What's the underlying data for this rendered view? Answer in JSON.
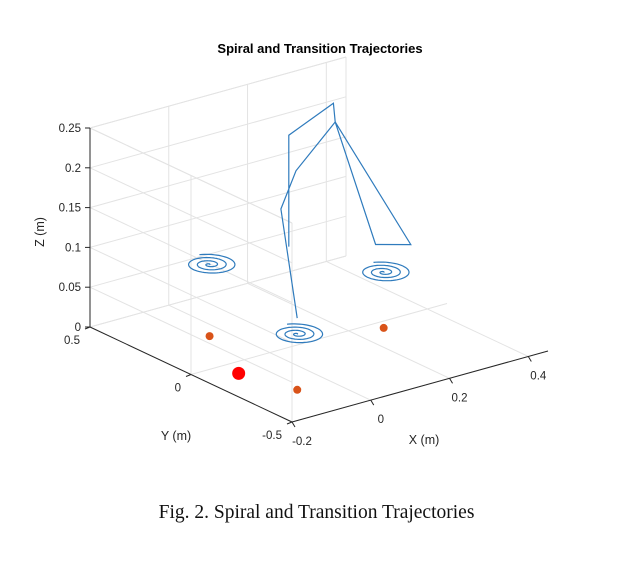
{
  "chart_data": {
    "type": "line3d",
    "title": "Spiral and Transition Trajectories",
    "xlabel": "X (m)",
    "ylabel": "Y (m)",
    "zlabel": "Z (m)",
    "xlim": [
      -0.2,
      0.45
    ],
    "ylim": [
      -0.5,
      0.5
    ],
    "zlim": [
      0,
      0.25
    ],
    "xticks": [
      "-0.2",
      "0",
      "0.2",
      "0.4"
    ],
    "yticks": [
      "-0.5",
      "0",
      "0.5"
    ],
    "zticks": [
      "0",
      "0.05",
      "0.1",
      "0.15",
      "0.2",
      "0.25"
    ],
    "grid": true,
    "colors": {
      "trajectory": "#2f7bbd",
      "target": "#d95319",
      "start": "#ff0000",
      "axis": "#262626",
      "grid": "#e3e3e3"
    },
    "spiral_centers": [
      {
        "x": -0.04,
        "y": 0.22,
        "z": 0.09
      },
      {
        "x": 0.08,
        "y": 0.02,
        "z": 0.01
      },
      {
        "x": 0.32,
        "y": 0.06,
        "z": 0.05
      }
    ],
    "transition_path": [
      {
        "x": 0.12,
        "y": 0.14,
        "z": 0.1
      },
      {
        "x": 0.12,
        "y": 0.14,
        "z": 0.17
      },
      {
        "x": 0.12,
        "y": 0.14,
        "z": 0.24
      },
      {
        "x": 0.3,
        "y": 0.27,
        "z": 0.24
      },
      {
        "x": 0.32,
        "y": 0.3,
        "z": 0.21
      },
      {
        "x": 0.2,
        "y": 0.26,
        "z": 0.17
      },
      {
        "x": 0.1,
        "y": 0.14,
        "z": 0.15
      },
      {
        "x": 0.08,
        "y": 0.02,
        "z": 0.03
      }
    ],
    "second_transition": [
      {
        "x": 0.32,
        "y": 0.3,
        "z": 0.21
      },
      {
        "x": 0.32,
        "y": 0.1,
        "z": 0.08
      },
      {
        "x": 0.43,
        "y": 0.14,
        "z": 0.06
      },
      {
        "x": 0.32,
        "y": 0.3,
        "z": 0.21
      }
    ],
    "target_points": [
      {
        "x": -0.04,
        "y": 0.22,
        "z": 0.0
      },
      {
        "x": 0.08,
        "y": 0.02,
        "z": -0.06
      },
      {
        "x": 0.32,
        "y": 0.06,
        "z": -0.02
      }
    ],
    "start_point": {
      "x": -0.12,
      "y": -0.08,
      "z": 0.0
    }
  },
  "caption": "Fig. 2.  Spiral and Transition Trajectories"
}
